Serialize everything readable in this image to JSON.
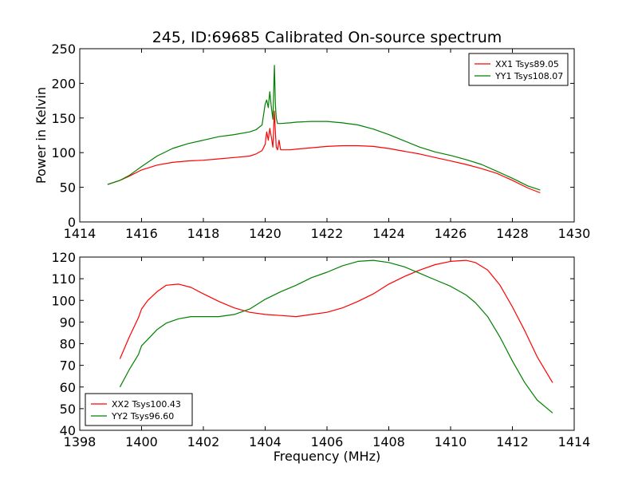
{
  "title": "245, ID:69685 Calibrated On-source spectrum",
  "chart_data": [
    {
      "type": "line",
      "ylabel": "Power in Kelvin",
      "xlabel": "",
      "xlim": [
        1414,
        1430
      ],
      "ylim": [
        0,
        250
      ],
      "xticks": [
        1414,
        1416,
        1418,
        1420,
        1422,
        1424,
        1426,
        1428,
        1430
      ],
      "yticks": [
        0,
        50,
        100,
        150,
        200,
        250
      ],
      "legend": "top-right",
      "grid": false,
      "series": [
        {
          "name": "XX1 Tsys89.05",
          "color": "#ff0000",
          "x": [
            1414.9,
            1415.3,
            1415.6,
            1416.0,
            1416.5,
            1417.0,
            1417.5,
            1418.0,
            1418.5,
            1419.0,
            1419.5,
            1419.7,
            1419.9,
            1420.0,
            1420.05,
            1420.1,
            1420.15,
            1420.2,
            1420.25,
            1420.3,
            1420.33,
            1420.36,
            1420.4,
            1420.45,
            1420.5,
            1420.8,
            1421.0,
            1421.5,
            1422.0,
            1422.5,
            1423.0,
            1423.5,
            1424.0,
            1424.5,
            1425.0,
            1425.5,
            1426.0,
            1426.5,
            1427.0,
            1427.5,
            1428.0,
            1428.5,
            1428.9
          ],
          "y": [
            54,
            60,
            66,
            75,
            82,
            86,
            88,
            89,
            91,
            93,
            95,
            98,
            103,
            112,
            130,
            118,
            135,
            122,
            108,
            160,
            130,
            108,
            104,
            118,
            104,
            104,
            105,
            107,
            109,
            110,
            110,
            109,
            106,
            102,
            98,
            93,
            88,
            83,
            77,
            70,
            60,
            49,
            42
          ]
        },
        {
          "name": "YY1 Tsys108.07",
          "color": "#008000",
          "x": [
            1414.9,
            1415.3,
            1415.6,
            1416.0,
            1416.5,
            1417.0,
            1417.5,
            1418.0,
            1418.5,
            1419.0,
            1419.5,
            1419.7,
            1419.9,
            1420.0,
            1420.05,
            1420.1,
            1420.15,
            1420.2,
            1420.25,
            1420.3,
            1420.33,
            1420.36,
            1420.4,
            1420.5,
            1420.8,
            1421.0,
            1421.5,
            1422.0,
            1422.5,
            1423.0,
            1423.5,
            1424.0,
            1424.5,
            1425.0,
            1425.5,
            1426.0,
            1426.5,
            1427.0,
            1427.5,
            1428.0,
            1428.5,
            1428.9
          ],
          "y": [
            54,
            60,
            67,
            80,
            95,
            106,
            113,
            118,
            123,
            126,
            130,
            133,
            140,
            170,
            176,
            165,
            188,
            165,
            148,
            226,
            170,
            150,
            142,
            142,
            143,
            144,
            145,
            145,
            143,
            140,
            134,
            126,
            117,
            108,
            101,
            96,
            90,
            83,
            73,
            63,
            52,
            46
          ]
        }
      ]
    },
    {
      "type": "line",
      "xlabel": "Frequency (MHz)",
      "ylabel": "",
      "xlim": [
        1398,
        1414
      ],
      "ylim": [
        40,
        120
      ],
      "xticks": [
        1398,
        1400,
        1402,
        1404,
        1406,
        1408,
        1410,
        1412,
        1414
      ],
      "yticks": [
        40,
        50,
        60,
        70,
        80,
        90,
        100,
        110,
        120
      ],
      "legend": "bottom-left",
      "grid": false,
      "series": [
        {
          "name": "XX2 Tsys100.43",
          "color": "#ff0000",
          "x": [
            1399.3,
            1399.6,
            1399.9,
            1400.0,
            1400.2,
            1400.5,
            1400.8,
            1401.2,
            1401.6,
            1402.0,
            1402.5,
            1403.0,
            1403.5,
            1404.0,
            1404.5,
            1405.0,
            1405.5,
            1406.0,
            1406.5,
            1407.0,
            1407.5,
            1408.0,
            1408.5,
            1409.0,
            1409.5,
            1410.0,
            1410.5,
            1410.8,
            1411.2,
            1411.6,
            1412.0,
            1412.4,
            1412.8,
            1413.3
          ],
          "y": [
            73,
            83,
            92,
            96,
            100,
            104,
            107,
            107.5,
            106,
            103,
            99.5,
            96.5,
            94.5,
            93.5,
            93,
            92.5,
            93.5,
            94.5,
            96.5,
            99.5,
            103,
            107.5,
            111,
            114,
            116.5,
            118,
            118.5,
            117.5,
            114,
            107,
            97,
            86,
            74,
            62
          ]
        },
        {
          "name": "YY2 Tsys96.60",
          "color": "#008000",
          "x": [
            1399.3,
            1399.6,
            1399.9,
            1400.0,
            1400.2,
            1400.5,
            1400.8,
            1401.2,
            1401.6,
            1402.0,
            1402.5,
            1403.0,
            1403.5,
            1404.0,
            1404.5,
            1405.0,
            1405.5,
            1406.0,
            1406.5,
            1407.0,
            1407.5,
            1408.0,
            1408.5,
            1409.0,
            1409.5,
            1410.0,
            1410.5,
            1410.8,
            1411.2,
            1411.6,
            1412.0,
            1412.4,
            1412.8,
            1413.3
          ],
          "y": [
            60,
            68,
            75,
            79,
            82,
            86.5,
            89.5,
            91.5,
            92.5,
            92.5,
            92.5,
            93.5,
            96,
            100.5,
            104,
            107,
            110.5,
            113,
            116,
            118,
            118.5,
            117.5,
            115.5,
            112.5,
            109.5,
            106.5,
            102.5,
            99,
            92.5,
            83,
            72,
            62,
            54,
            48
          ]
        }
      ]
    }
  ]
}
